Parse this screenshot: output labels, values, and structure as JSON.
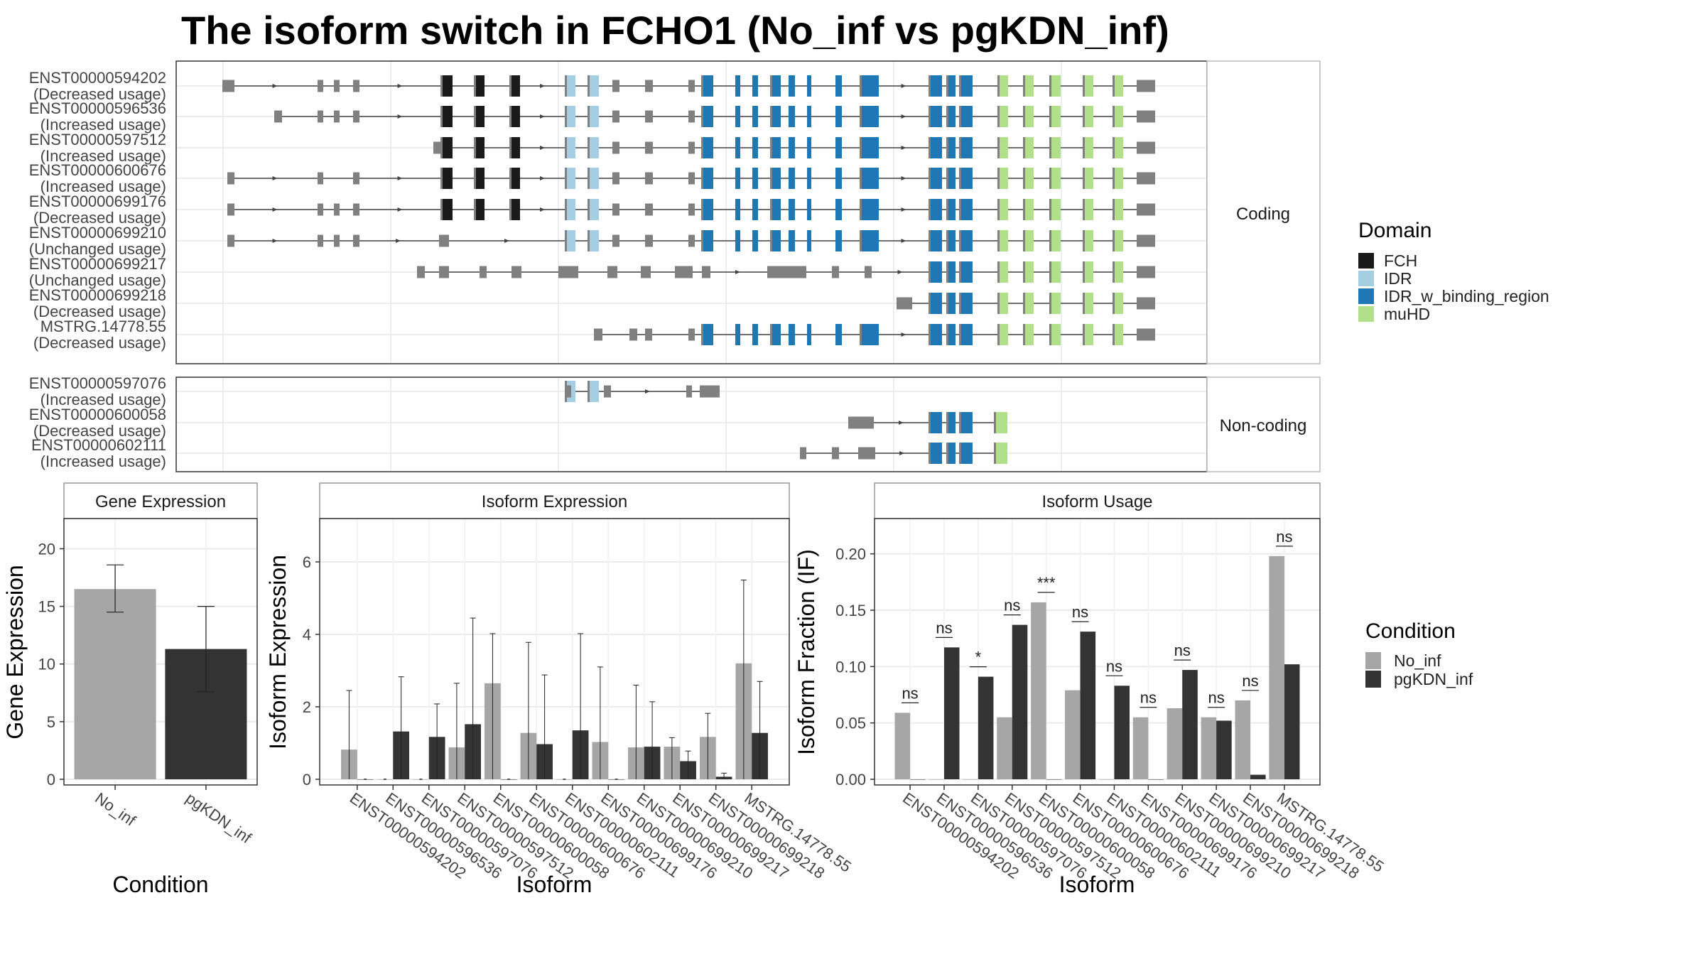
{
  "title": "The isoform switch in FCHO1 (No_inf vs pgKDN_inf)",
  "structure": {
    "facets": [
      "Coding",
      "Non-coding"
    ],
    "coding_isoforms": [
      {
        "id": "ENST00000594202",
        "usage": "(Decreased usage)"
      },
      {
        "id": "ENST00000596536",
        "usage": "(Increased usage)"
      },
      {
        "id": "ENST00000597512",
        "usage": "(Increased usage)"
      },
      {
        "id": "ENST00000600676",
        "usage": "(Increased usage)"
      },
      {
        "id": "ENST00000699176",
        "usage": "(Decreased usage)"
      },
      {
        "id": "ENST00000699210",
        "usage": "(Unchanged usage)"
      },
      {
        "id": "ENST00000699217",
        "usage": "(Unchanged usage)"
      },
      {
        "id": "ENST00000699218",
        "usage": "(Decreased usage)"
      },
      {
        "id": "MSTRG.14778.55",
        "usage": "(Decreased usage)"
      }
    ],
    "noncoding_isoforms": [
      {
        "id": "ENST00000597076",
        "usage": "(Increased usage)"
      },
      {
        "id": "ENST00000600058",
        "usage": "(Decreased usage)"
      },
      {
        "id": "ENST00000602111",
        "usage": "(Increased usage)"
      }
    ]
  },
  "domain_legend": {
    "title": "Domain",
    "items": [
      {
        "label": "FCH",
        "color": "#1a1a1a"
      },
      {
        "label": "IDR",
        "color": "#a6cee3"
      },
      {
        "label": "IDR_w_binding_region",
        "color": "#1f78b4"
      },
      {
        "label": "muHD",
        "color": "#b2df8a"
      }
    ]
  },
  "condition_legend": {
    "title": "Condition",
    "items": [
      {
        "label": "No_inf",
        "color": "#a6a6a6"
      },
      {
        "label": "pgKDN_inf",
        "color": "#333333"
      }
    ]
  },
  "chart_data": [
    {
      "type": "bar",
      "title": "Gene Expression",
      "xlabel": "Condition",
      "ylabel": "Gene Expression",
      "categories": [
        "No_inf",
        "pgKDN_inf"
      ],
      "values": [
        16.5,
        11.3
      ],
      "error_low": [
        14.5,
        7.6
      ],
      "error_high": [
        18.6,
        15.0
      ],
      "ylim": [
        0,
        22
      ],
      "yticks": [
        "0",
        "5",
        "10",
        "15",
        "20"
      ]
    },
    {
      "type": "bar",
      "title": "Isoform Expression",
      "xlabel": "Isoform",
      "ylabel": "Isoform Expression",
      "categories": [
        "ENST00000594202",
        "ENST00000596536",
        "ENST00000597076",
        "ENST00000597512",
        "ENST00000600058",
        "ENST00000600676",
        "ENST00000602111",
        "ENST00000699176",
        "ENST00000699210",
        "ENST00000699217",
        "ENST00000699218",
        "MSTRG.14778.55"
      ],
      "series": [
        {
          "name": "No_inf",
          "values": [
            0.82,
            0.0,
            0.0,
            0.88,
            2.65,
            1.28,
            0.0,
            1.03,
            0.88,
            0.9,
            1.17,
            3.2
          ],
          "error_high": [
            2.45,
            0.0,
            0.0,
            2.65,
            4.02,
            3.78,
            0.0,
            3.1,
            2.6,
            1.15,
            1.82,
            5.5
          ]
        },
        {
          "name": "pgKDN_inf",
          "values": [
            0.0,
            1.32,
            1.17,
            1.52,
            0.0,
            0.97,
            1.35,
            0.0,
            0.9,
            0.5,
            0.07,
            1.28
          ],
          "error_high": [
            0.0,
            2.83,
            2.08,
            4.45,
            0.0,
            2.88,
            4.02,
            0.0,
            2.14,
            0.78,
            0.17,
            2.7
          ]
        }
      ],
      "ylim": [
        0,
        7
      ],
      "yticks": [
        "0",
        "2",
        "4",
        "6"
      ]
    },
    {
      "type": "bar",
      "title": "Isoform Usage",
      "xlabel": "Isoform",
      "ylabel": "Isoform Fraction (IF)",
      "categories": [
        "ENST00000594202",
        "ENST00000596536",
        "ENST00000597076",
        "ENST00000597512",
        "ENST00000600058",
        "ENST00000600676",
        "ENST00000602111",
        "ENST00000699176",
        "ENST00000699210",
        "ENST00000699217",
        "ENST00000699218",
        "MSTRG.14778.55"
      ],
      "series": [
        {
          "name": "No_inf",
          "values": [
            0.059,
            0.0,
            0.0,
            0.055,
            0.157,
            0.079,
            0.0,
            0.055,
            0.063,
            0.055,
            0.07,
            0.198
          ]
        },
        {
          "name": "pgKDN_inf",
          "values": [
            0.0,
            0.117,
            0.091,
            0.137,
            0.0,
            0.131,
            0.083,
            0.0,
            0.097,
            0.052,
            0.004,
            0.102
          ]
        }
      ],
      "significance": [
        {
          "label": "ns",
          "between": [
            0,
            0
          ]
        },
        {
          "label": "ns",
          "between": [
            1,
            1
          ]
        },
        {
          "label": "*",
          "between": [
            2,
            2
          ]
        },
        {
          "label": "ns",
          "between": [
            3,
            3
          ]
        },
        {
          "label": "***",
          "between": [
            4,
            4
          ]
        },
        {
          "label": "ns",
          "between": [
            5,
            5
          ]
        },
        {
          "label": "ns",
          "between": [
            6,
            6
          ]
        },
        {
          "label": "ns",
          "between": [
            7,
            7
          ]
        },
        {
          "label": "ns",
          "between": [
            8,
            8
          ]
        },
        {
          "label": "ns",
          "between": [
            9,
            9
          ]
        },
        {
          "label": "ns",
          "between": [
            10,
            10
          ]
        },
        {
          "label": "ns",
          "between": [
            11,
            11
          ]
        }
      ],
      "ylim": [
        0,
        0.225
      ],
      "yticks": [
        "0.00",
        "0.05",
        "0.10",
        "0.15",
        "0.20"
      ]
    }
  ]
}
